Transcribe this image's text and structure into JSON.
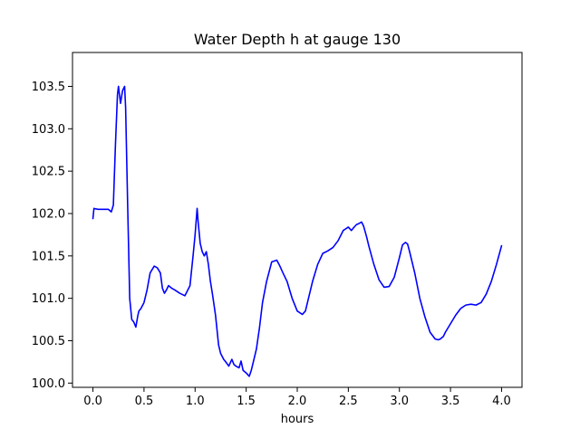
{
  "chart_data": {
    "type": "line",
    "title": "Water Depth h at gauge 130",
    "xlabel": "hours",
    "ylabel": "",
    "xlim": [
      -0.2,
      4.2
    ],
    "ylim": [
      99.95,
      103.9
    ],
    "xticks": [
      0.0,
      0.5,
      1.0,
      1.5,
      2.0,
      2.5,
      3.0,
      3.5,
      4.0
    ],
    "xtick_labels": [
      "0.0",
      "0.5",
      "1.0",
      "1.5",
      "2.0",
      "2.5",
      "3.0",
      "3.5",
      "4.0"
    ],
    "yticks": [
      100.0,
      100.5,
      101.0,
      101.5,
      102.0,
      102.5,
      103.0,
      103.5
    ],
    "ytick_labels": [
      "100.0",
      "100.5",
      "101.0",
      "101.5",
      "102.0",
      "102.5",
      "103.0",
      "103.5"
    ],
    "grid": false,
    "series": [
      {
        "color": "#0000ff",
        "x": [
          0.0,
          0.01,
          0.05,
          0.1,
          0.15,
          0.18,
          0.2,
          0.22,
          0.24,
          0.25,
          0.27,
          0.29,
          0.31,
          0.32,
          0.34,
          0.36,
          0.38,
          0.4,
          0.42,
          0.44,
          0.45,
          0.47,
          0.5,
          0.53,
          0.56,
          0.6,
          0.63,
          0.66,
          0.68,
          0.7,
          0.72,
          0.74,
          0.77,
          0.8,
          0.85,
          0.9,
          0.95,
          0.98,
          1.0,
          1.02,
          1.03,
          1.05,
          1.07,
          1.09,
          1.11,
          1.13,
          1.15,
          1.17,
          1.2,
          1.23,
          1.25,
          1.28,
          1.3,
          1.33,
          1.36,
          1.38,
          1.4,
          1.43,
          1.45,
          1.47,
          1.5,
          1.53,
          1.55,
          1.57,
          1.6,
          1.63,
          1.66,
          1.7,
          1.75,
          1.8,
          1.83,
          1.86,
          1.9,
          1.95,
          2.0,
          2.05,
          2.08,
          2.1,
          2.15,
          2.2,
          2.25,
          2.3,
          2.35,
          2.4,
          2.45,
          2.5,
          2.53,
          2.55,
          2.58,
          2.6,
          2.63,
          2.65,
          2.68,
          2.7,
          2.75,
          2.8,
          2.85,
          2.9,
          2.95,
          3.0,
          3.03,
          3.06,
          3.08,
          3.1,
          3.13,
          3.15,
          3.2,
          3.25,
          3.3,
          3.35,
          3.38,
          3.4,
          3.43,
          3.45,
          3.5,
          3.55,
          3.6,
          3.65,
          3.7,
          3.75,
          3.8,
          3.85,
          3.9,
          3.95,
          4.0
        ],
        "y": [
          101.94,
          102.06,
          102.05,
          102.05,
          102.05,
          102.02,
          102.1,
          102.8,
          103.4,
          103.5,
          103.3,
          103.45,
          103.5,
          103.25,
          102.1,
          101.0,
          100.75,
          100.72,
          100.66,
          100.8,
          100.85,
          100.88,
          100.95,
          101.1,
          101.3,
          101.38,
          101.36,
          101.3,
          101.12,
          101.06,
          101.1,
          101.15,
          101.12,
          101.1,
          101.06,
          101.03,
          101.15,
          101.5,
          101.75,
          102.06,
          101.9,
          101.65,
          101.55,
          101.5,
          101.55,
          101.4,
          101.2,
          101.05,
          100.8,
          100.45,
          100.35,
          100.28,
          100.25,
          100.2,
          100.28,
          100.22,
          100.2,
          100.18,
          100.26,
          100.15,
          100.12,
          100.08,
          100.15,
          100.25,
          100.4,
          100.65,
          100.95,
          101.2,
          101.43,
          101.45,
          101.38,
          101.3,
          101.2,
          101.0,
          100.85,
          100.81,
          100.85,
          100.95,
          101.2,
          101.4,
          101.53,
          101.56,
          101.6,
          101.68,
          101.8,
          101.84,
          101.8,
          101.83,
          101.87,
          101.88,
          101.9,
          101.85,
          101.72,
          101.62,
          101.4,
          101.22,
          101.13,
          101.14,
          101.25,
          101.48,
          101.63,
          101.66,
          101.64,
          101.55,
          101.4,
          101.3,
          101.0,
          100.78,
          100.6,
          100.52,
          100.51,
          100.52,
          100.55,
          100.6,
          100.7,
          100.8,
          100.88,
          100.92,
          100.93,
          100.92,
          100.95,
          101.05,
          101.2,
          101.4,
          101.62
        ]
      }
    ]
  }
}
